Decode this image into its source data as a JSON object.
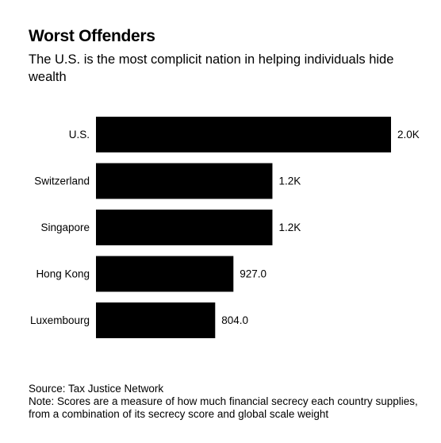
{
  "title": "Worst Offenders",
  "subtitle": "The U.S. is the most complicit nation in helping individuals hide wealth",
  "chart_data": {
    "type": "bar",
    "orientation": "horizontal",
    "title": "Worst Offenders",
    "subtitle": "The U.S. is the most complicit nation in helping individuals hide wealth",
    "categories": [
      "U.S.",
      "Switzerland",
      "Singapore",
      "Hong Kong",
      "Luxembourg"
    ],
    "values": [
      1990,
      1190,
      1190,
      927,
      804
    ],
    "value_labels": [
      "2.0K",
      "1.2K",
      "1.2K",
      "927.0",
      "804.0"
    ],
    "xlabel": "",
    "ylabel": "",
    "xlim": [
      0,
      1990
    ],
    "grid": false,
    "legend": "none",
    "bar_color": "#000000"
  },
  "footer": {
    "source": "Source: Tax Justice Network",
    "note": "Note: Scores are a measure of how much financial secrecy each country supplies, from a combination of its secrecy score and global scale weight"
  }
}
